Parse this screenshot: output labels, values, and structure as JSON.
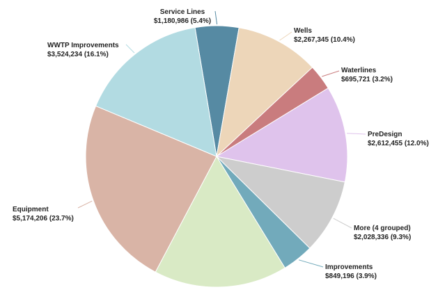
{
  "chart_data": {
    "type": "pie",
    "title": "",
    "slices": [
      {
        "label": "Service Lines",
        "value": 1180986,
        "display": "$1,180,986 (5.4%)",
        "percent": 5.4,
        "color": "#568aa3"
      },
      {
        "label": "Wells",
        "value": 2267345,
        "display": "$2,267,345 (10.4%)",
        "percent": 10.4,
        "color": "#edd6b9"
      },
      {
        "label": "Waterlines",
        "value": 695721,
        "display": "$695,721 (3.2%)",
        "percent": 3.2,
        "color": "#c97c7e"
      },
      {
        "label": "PreDesign",
        "value": 2612455,
        "display": "$2,612,455 (12.0%)",
        "percent": 12.0,
        "color": "#dfc3ec"
      },
      {
        "label": "More (4 grouped)",
        "value": 2028336,
        "display": "$2,028,336 (9.3%)",
        "percent": 9.3,
        "color": "#cdcdcd"
      },
      {
        "label": "Improvements",
        "value": 849196,
        "display": "$849,196 (3.9%)",
        "percent": 3.9,
        "color": "#72aabb"
      },
      {
        "label": "",
        "value": 3616000,
        "display": "",
        "percent": 16.6,
        "color": "#d9eac5"
      },
      {
        "label": "Equipment",
        "value": 5174206,
        "display": "$5,174,206 (23.7%)",
        "percent": 23.7,
        "color": "#d9b4a6"
      },
      {
        "label": "WWTP Improvements",
        "value": 3524234,
        "display": "$3,524,234 (16.1%)",
        "percent": 16.1,
        "color": "#b2dbe2"
      }
    ],
    "legend": "none"
  }
}
